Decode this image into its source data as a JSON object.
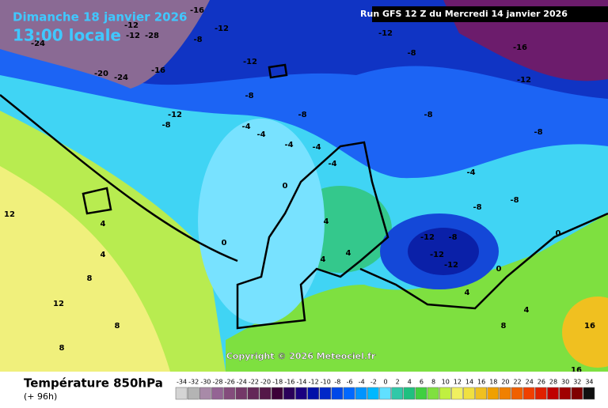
{
  "header": {
    "date": "Dimanche 18 janvier 2026",
    "time": "13:00 locale",
    "run": "Run GFS 12 Z du Mercredi 14 janvier 2026"
  },
  "copyright": "Copyright © 2026 Meteociel.fr",
  "map_labels": [
    -20,
    -24,
    -16,
    -12,
    -12,
    -28,
    -16,
    -8,
    -12,
    -12,
    -8,
    -16,
    -12,
    -8,
    -12,
    -8,
    -4,
    -4,
    -4,
    -8,
    -8,
    -4,
    -4,
    0,
    0,
    4,
    4,
    4,
    8,
    8,
    12,
    12,
    8,
    4,
    4,
    0,
    -12,
    -8,
    -12,
    -12,
    -8,
    -8,
    -4,
    0,
    4,
    4,
    8,
    16,
    16,
    -24,
    -12,
    -8
  ],
  "legend": {
    "title": "Température 850hPa",
    "subtitle": "(+ 96h)",
    "values": [
      -34,
      -32,
      -30,
      -28,
      -26,
      -24,
      -22,
      -20,
      -18,
      -16,
      -14,
      -12,
      -10,
      -8,
      -6,
      -4,
      -2,
      0,
      2,
      4,
      6,
      8,
      10,
      12,
      14,
      16,
      18,
      20,
      22,
      24,
      26,
      28,
      30,
      32,
      34
    ],
    "colors": [
      "#d4d4d4",
      "#b4b4b4",
      "#a88aa8",
      "#946494",
      "#844c7c",
      "#743868",
      "#642858",
      "#541848",
      "#3c0038",
      "#2a005a",
      "#1a0080",
      "#0010a8",
      "#0028c8",
      "#0048e8",
      "#0068ff",
      "#0094ff",
      "#00b8ff",
      "#60e0ff",
      "#30c8a8",
      "#20c080",
      "#40d040",
      "#80e040",
      "#c0f040",
      "#f0f060",
      "#f0e040",
      "#f0c020",
      "#f0a000",
      "#f08000",
      "#f06000",
      "#f04000",
      "#e02000",
      "#c00000",
      "#a00000",
      "#800000",
      "#101010"
    ]
  }
}
